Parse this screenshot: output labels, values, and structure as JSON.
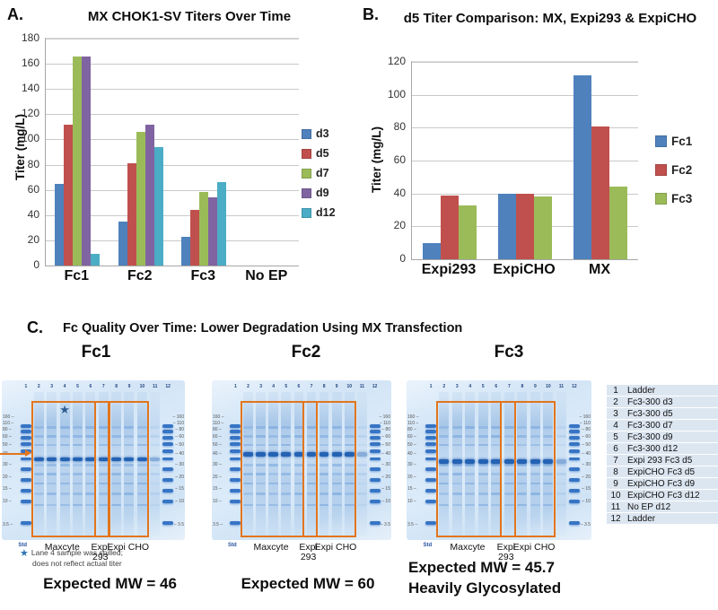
{
  "colors": {
    "bar_blue": "#4F81BD",
    "bar_red": "#C0504D",
    "bar_green": "#9BBB59",
    "bar_purple": "#8064A2",
    "bar_cyan": "#4BACC6",
    "box_orange": "#E2751D",
    "gel_band_blue": "#2668BF",
    "table_row_bg": "#DCE6F1",
    "star_blue": "#2E74B5"
  },
  "chart_data": [
    {
      "type": "bar",
      "panel_label": "A.",
      "title": "MX CHOK1-SV Titers Over Time",
      "ylabel": "Titer (mg/L)",
      "ylim": [
        0,
        180
      ],
      "ytick_step": 20,
      "grid": true,
      "legend_position": "right",
      "categories": [
        "Fc1",
        "Fc2",
        "Fc3",
        "No EP"
      ],
      "series": [
        {
          "name": "d3",
          "color": "#4F81BD",
          "values": [
            65,
            35,
            23,
            0
          ]
        },
        {
          "name": "d5",
          "color": "#C0504D",
          "values": [
            112,
            81,
            44,
            0
          ]
        },
        {
          "name": "d7",
          "color": "#9BBB59",
          "values": [
            166,
            106,
            58,
            0
          ]
        },
        {
          "name": "d9",
          "color": "#8064A2",
          "values": [
            166,
            112,
            54,
            0
          ]
        },
        {
          "name": "d12",
          "color": "#4BACC6",
          "values": [
            9,
            94,
            66,
            0
          ]
        }
      ]
    },
    {
      "type": "bar",
      "panel_label": "B.",
      "title": "d5 Titer Comparison: MX, Expi293 & ExpiCHO",
      "ylabel": "Titer (mg/L)",
      "ylim": [
        0,
        120
      ],
      "ytick_step": 20,
      "grid": true,
      "legend_position": "right",
      "categories": [
        "Expi293",
        "ExpiCHO",
        "MX"
      ],
      "series": [
        {
          "name": "Fc1",
          "color": "#4F81BD",
          "values": [
            10,
            40,
            112
          ]
        },
        {
          "name": "Fc2",
          "color": "#C0504D",
          "values": [
            39,
            40,
            81
          ]
        },
        {
          "name": "Fc3",
          "color": "#9BBB59",
          "values": [
            33,
            38,
            44
          ]
        }
      ]
    }
  ],
  "panel_c": {
    "label": "C.",
    "title": "Fc Quality Over Time: Lower Degradation Using MX Transfection",
    "marker_labels": [
      "160",
      "110",
      "80",
      "60",
      "50",
      "40",
      "30",
      "20",
      "15",
      "10",
      "3.5"
    ],
    "gels": [
      {
        "title": "Fc1",
        "lane_numbers": [
          "1",
          "2",
          "3",
          "4",
          "5",
          "6",
          "7",
          "8",
          "9",
          "10",
          "11",
          "12"
        ],
        "std_label": "Std",
        "group_labels": {
          "maxcyte": "Maxcyte",
          "expi_line1": "Expi",
          "expi_line2": "293",
          "expicho": "Expi CHO"
        },
        "expected_mw": [
          "Expected MW = 46"
        ],
        "has_star": true,
        "has_arrow": true
      },
      {
        "title": "Fc2",
        "lane_numbers": [
          "1",
          "2",
          "3",
          "4",
          "5",
          "6",
          "7",
          "8",
          "9",
          "10",
          "11",
          "12"
        ],
        "std_label": "Std",
        "group_labels": {
          "maxcyte": "Maxcyte",
          "expi_line1": "Expi",
          "expi_line2": "293",
          "expicho": "Expi CHO"
        },
        "expected_mw": [
          "Expected MW = 60"
        ],
        "has_star": false,
        "has_arrow": false
      },
      {
        "title": "Fc3",
        "lane_numbers": [
          "1",
          "2",
          "3",
          "4",
          "5",
          "6",
          "7",
          "8",
          "9",
          "10",
          "11",
          "12"
        ],
        "std_label": "Std",
        "group_labels": {
          "maxcyte": "Maxcyte",
          "expi_line1": "Expi",
          "expi_line2": "293",
          "expicho": "Expi CHO"
        },
        "expected_mw": [
          "Expected MW = 45.7",
          "Heavily Glycosylated"
        ],
        "has_star": false,
        "has_arrow": false
      }
    ],
    "footnote": {
      "star": "★",
      "line1": "Lane 4 sample was spilled;",
      "line2": "does not reflect actual titer"
    },
    "lane_legend": [
      [
        "1",
        "Ladder"
      ],
      [
        "2",
        "Fc3-300 d3"
      ],
      [
        "3",
        "Fc3-300 d5"
      ],
      [
        "4",
        "Fc3-300 d7"
      ],
      [
        "5",
        "Fc3-300 d9"
      ],
      [
        "6",
        "Fc3-300 d12"
      ],
      [
        "7",
        "Expi 293 Fc3 d5"
      ],
      [
        "8",
        "ExpiCHO Fc3 d5"
      ],
      [
        "9",
        "ExpiCHO Fc3 d9"
      ],
      [
        "10",
        "ExpiCHO Fc3 d12"
      ],
      [
        "11",
        "No EP d12"
      ],
      [
        "12",
        "Ladder"
      ]
    ]
  }
}
